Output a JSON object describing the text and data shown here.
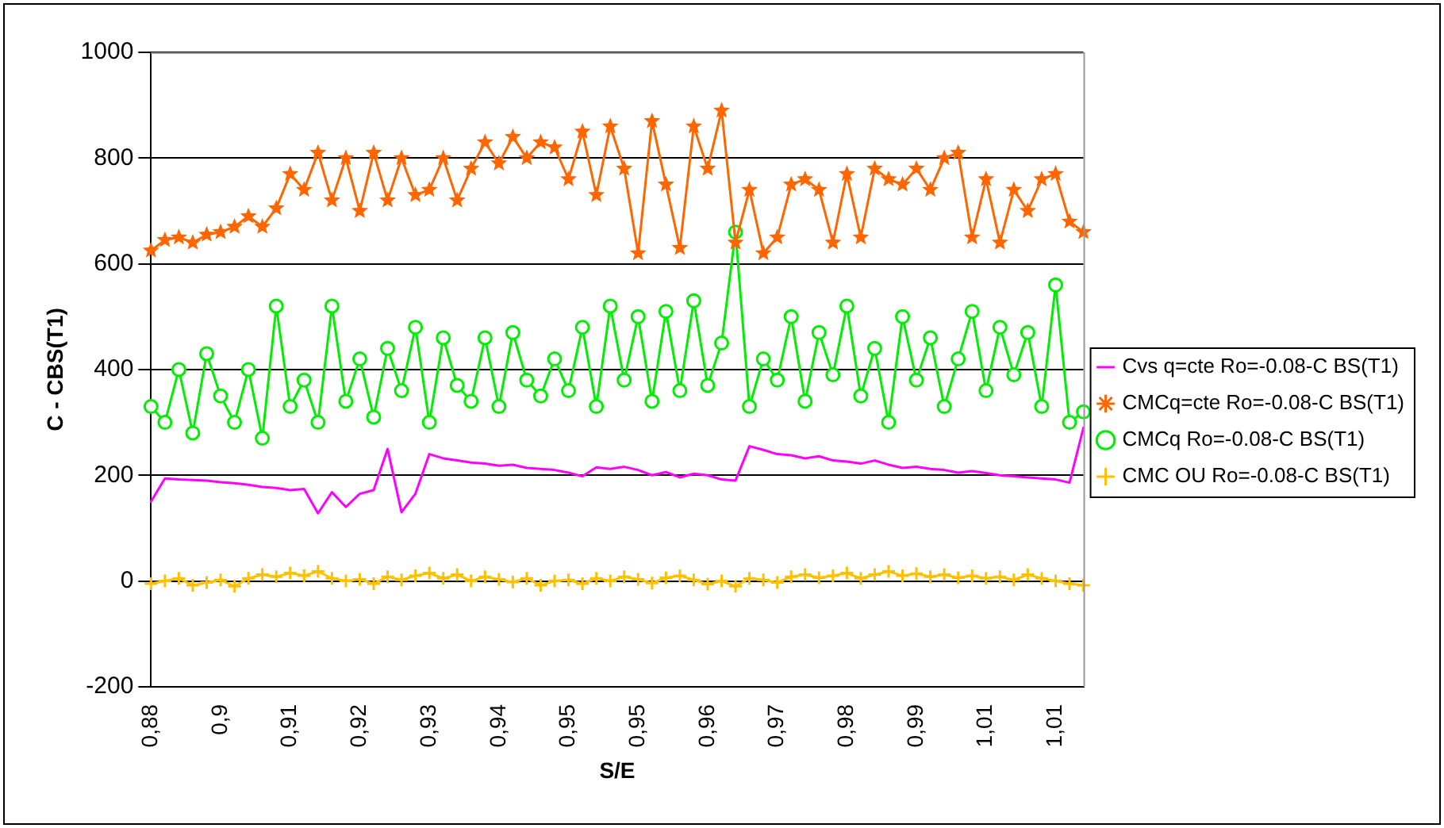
{
  "chart_data": {
    "type": "line",
    "xlabel": "S/E",
    "ylabel": "C - CBS(T1)",
    "categories": [
      "0,88",
      null,
      null,
      null,
      null,
      "0,9",
      null,
      null,
      null,
      null,
      "0,91",
      null,
      null,
      null,
      null,
      "0,92",
      null,
      null,
      null,
      null,
      "0,93",
      null,
      null,
      null,
      null,
      "0,94",
      null,
      null,
      null,
      null,
      "0,95",
      null,
      null,
      null,
      null,
      "0,95",
      null,
      null,
      null,
      null,
      "0,96",
      null,
      null,
      null,
      null,
      "0,97",
      null,
      null,
      null,
      null,
      "0,98",
      null,
      null,
      null,
      null,
      "0,99",
      null,
      null,
      null,
      null,
      "1,01",
      null,
      null,
      null,
      null,
      "1,01",
      null,
      null
    ],
    "ylim": [
      -200,
      1000
    ],
    "yticks": [
      -200,
      0,
      200,
      400,
      600,
      800,
      1000
    ],
    "grid": "y",
    "legend": "right",
    "series": [
      {
        "name": "Cvs q=cte Ro=-0.08-C BS(T1)",
        "color": "#ff00ff",
        "marker": "none",
        "values": [
          150,
          194,
          192,
          191,
          190,
          187,
          185,
          182,
          178,
          176,
          172,
          174,
          128,
          168,
          140,
          165,
          172,
          250,
          130,
          165,
          240,
          232,
          228,
          224,
          222,
          218,
          220,
          214,
          212,
          210,
          205,
          198,
          215,
          212,
          216,
          210,
          200,
          206,
          196,
          203,
          200,
          192,
          190,
          255,
          248,
          240,
          238,
          232,
          236,
          228,
          226,
          222,
          228,
          220,
          214,
          216,
          212,
          210,
          205,
          208,
          204,
          200,
          198,
          196,
          194,
          192,
          186,
          290
        ]
      },
      {
        "name": "CMCq=cte Ro=-0.08-C BS(T1)",
        "color": "#ff6600",
        "marker": "star",
        "values": [
          625,
          645,
          650,
          640,
          655,
          660,
          670,
          690,
          670,
          705,
          770,
          740,
          810,
          720,
          800,
          700,
          810,
          720,
          800,
          730,
          740,
          800,
          720,
          780,
          830,
          790,
          840,
          800,
          830,
          820,
          760,
          850,
          730,
          860,
          780,
          620,
          870,
          750,
          630,
          860,
          780,
          890,
          640,
          740,
          620,
          650,
          750,
          760,
          740,
          640,
          770,
          650,
          780,
          760,
          750,
          780,
          740,
          800,
          810,
          650,
          760,
          640,
          740,
          700,
          760,
          770,
          680,
          660
        ]
      },
      {
        "name": "CMCq Ro=-0.08-C BS(T1)",
        "color": "#00ee00",
        "marker": "circle",
        "values": [
          330,
          300,
          400,
          280,
          430,
          350,
          300,
          400,
          270,
          520,
          330,
          380,
          300,
          520,
          340,
          420,
          310,
          440,
          360,
          480,
          300,
          460,
          370,
          340,
          460,
          330,
          470,
          380,
          350,
          420,
          360,
          480,
          330,
          520,
          380,
          500,
          340,
          510,
          360,
          530,
          370,
          450,
          660,
          330,
          420,
          380,
          500,
          340,
          470,
          390,
          520,
          350,
          440,
          300,
          500,
          380,
          460,
          330,
          420,
          510,
          360,
          480,
          390,
          470,
          330,
          560,
          300,
          320
        ]
      },
      {
        "name": "CMC OU Ro=-0.08-C BS(T1)",
        "color": "#ffc000",
        "marker": "cross",
        "values": [
          -5,
          0,
          5,
          -8,
          -3,
          2,
          -10,
          5,
          12,
          8,
          15,
          10,
          18,
          5,
          0,
          3,
          -5,
          8,
          2,
          10,
          15,
          5,
          12,
          0,
          8,
          3,
          -2,
          5,
          -8,
          0,
          2,
          -5,
          5,
          0,
          8,
          3,
          -4,
          6,
          10,
          2,
          -6,
          0,
          -10,
          5,
          2,
          -3,
          8,
          12,
          6,
          10,
          15,
          5,
          12,
          18,
          10,
          14,
          8,
          12,
          6,
          10,
          5,
          8,
          2,
          12,
          5,
          0,
          -5,
          -8
        ]
      }
    ]
  }
}
